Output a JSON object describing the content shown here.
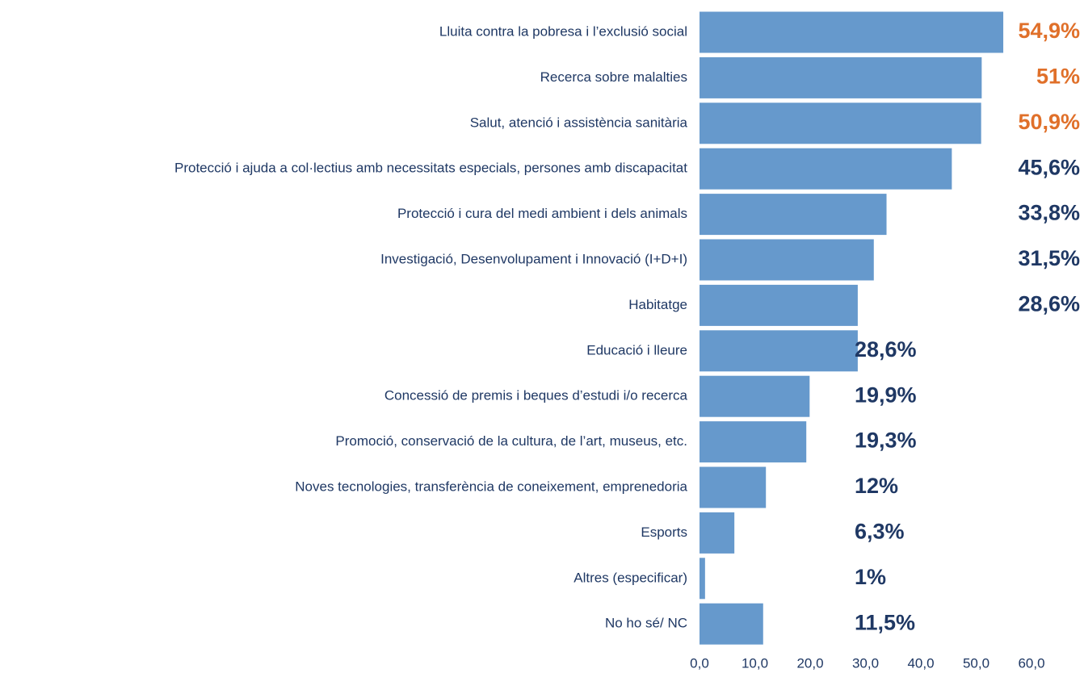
{
  "chart_data": {
    "type": "barh",
    "categories": [
      "Lluita contra la pobresa i l’exclusió social",
      "Recerca sobre malalties",
      "Salut, atenció i assistència sanitària",
      "Protecció i ajuda a col·lectius amb necessitats especials, persones amb discapacitat",
      "Protecció i cura del medi ambient i dels animals",
      "Investigació, Desenvolupament i Innovació (I+D+I)",
      "Habitatge",
      "Educació i lleure",
      "Concessió de premis i beques d’estudi i/o recerca",
      "Promoció, conservació de la cultura, de l’art, museus, etc.",
      "Noves tecnologies, transferència de coneixement, emprenedoria",
      "Esports",
      "Altres (especificar)",
      "No ho sé/ NC"
    ],
    "values": [
      54.9,
      51,
      50.9,
      45.6,
      33.8,
      31.5,
      28.6,
      28.6,
      19.9,
      19.3,
      12,
      6.3,
      1,
      11.5
    ],
    "value_labels": [
      "54,9%",
      "51%",
      "50,9%",
      "45,6%",
      "33,8%",
      "31,5%",
      "28,6%",
      "28,6%",
      "19,9%",
      "19,3%",
      "12%",
      "6,3%",
      "1%",
      "11,5%"
    ],
    "value_label_colors": [
      "#e0702a",
      "#e0702a",
      "#e0702a",
      "#1f3864",
      "#1f3864",
      "#1f3864",
      "#1f3864",
      "#1f3864",
      "#1f3864",
      "#1f3864",
      "#1f3864",
      "#1f3864",
      "#1f3864",
      "#1f3864"
    ],
    "color": "#6699cc",
    "xlim": [
      0,
      60
    ],
    "xticks": [
      {
        "value": 0,
        "label": "0,0"
      },
      {
        "value": 10,
        "label": "10,0"
      },
      {
        "value": 20,
        "label": "20,0"
      },
      {
        "value": 30,
        "label": "30,0"
      },
      {
        "value": 40,
        "label": "40,0"
      },
      {
        "value": 50,
        "label": "50,0"
      },
      {
        "value": 60,
        "label": "60,0"
      }
    ]
  }
}
